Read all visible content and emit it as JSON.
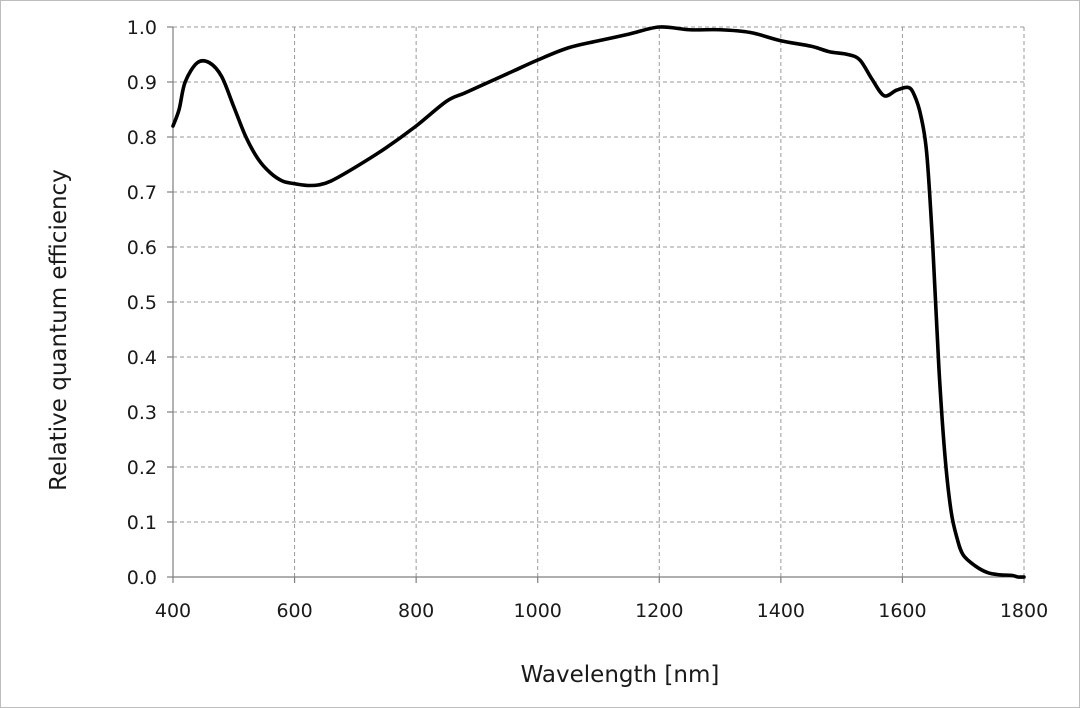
{
  "chart_data": {
    "type": "line",
    "title": "",
    "xlabel": "Wavelength [nm]",
    "ylabel": "Relative quantum efficiency",
    "xlim": [
      400,
      1800
    ],
    "ylim": [
      0,
      1.0
    ],
    "x_ticks": [
      "400",
      "600",
      "800",
      "1000",
      "1200",
      "1400",
      "1600",
      "1800"
    ],
    "y_ticks": [
      "0.0",
      "0.1",
      "0.2",
      "0.3",
      "0.4",
      "0.5",
      "0.6",
      "0.7",
      "0.8",
      "0.9",
      "1.0"
    ],
    "grid": true,
    "legend": "none",
    "line_color": "#000000",
    "series": [
      {
        "x": [
          400,
          410,
          420,
          440,
          460,
          480,
          500,
          520,
          540,
          560,
          580,
          600,
          620,
          640,
          660,
          700,
          750,
          800,
          850,
          880,
          920,
          960,
          1000,
          1050,
          1100,
          1150,
          1200,
          1250,
          1300,
          1350,
          1400,
          1450,
          1480,
          1510,
          1530,
          1550,
          1570,
          1590,
          1610,
          1620,
          1630,
          1640,
          1650,
          1660,
          1670,
          1680,
          1690,
          1700,
          1720,
          1740,
          1760,
          1780,
          1790,
          1800
        ],
        "y": [
          0.82,
          0.85,
          0.9,
          0.935,
          0.935,
          0.91,
          0.855,
          0.8,
          0.76,
          0.735,
          0.72,
          0.715,
          0.712,
          0.713,
          0.72,
          0.745,
          0.78,
          0.82,
          0.865,
          0.88,
          0.9,
          0.92,
          0.94,
          0.962,
          0.975,
          0.987,
          1.0,
          0.995,
          0.995,
          0.99,
          0.975,
          0.965,
          0.955,
          0.95,
          0.94,
          0.905,
          0.875,
          0.885,
          0.89,
          0.875,
          0.84,
          0.77,
          0.6,
          0.38,
          0.22,
          0.12,
          0.07,
          0.04,
          0.02,
          0.008,
          0.004,
          0.003,
          0.0,
          0.0
        ]
      }
    ]
  }
}
